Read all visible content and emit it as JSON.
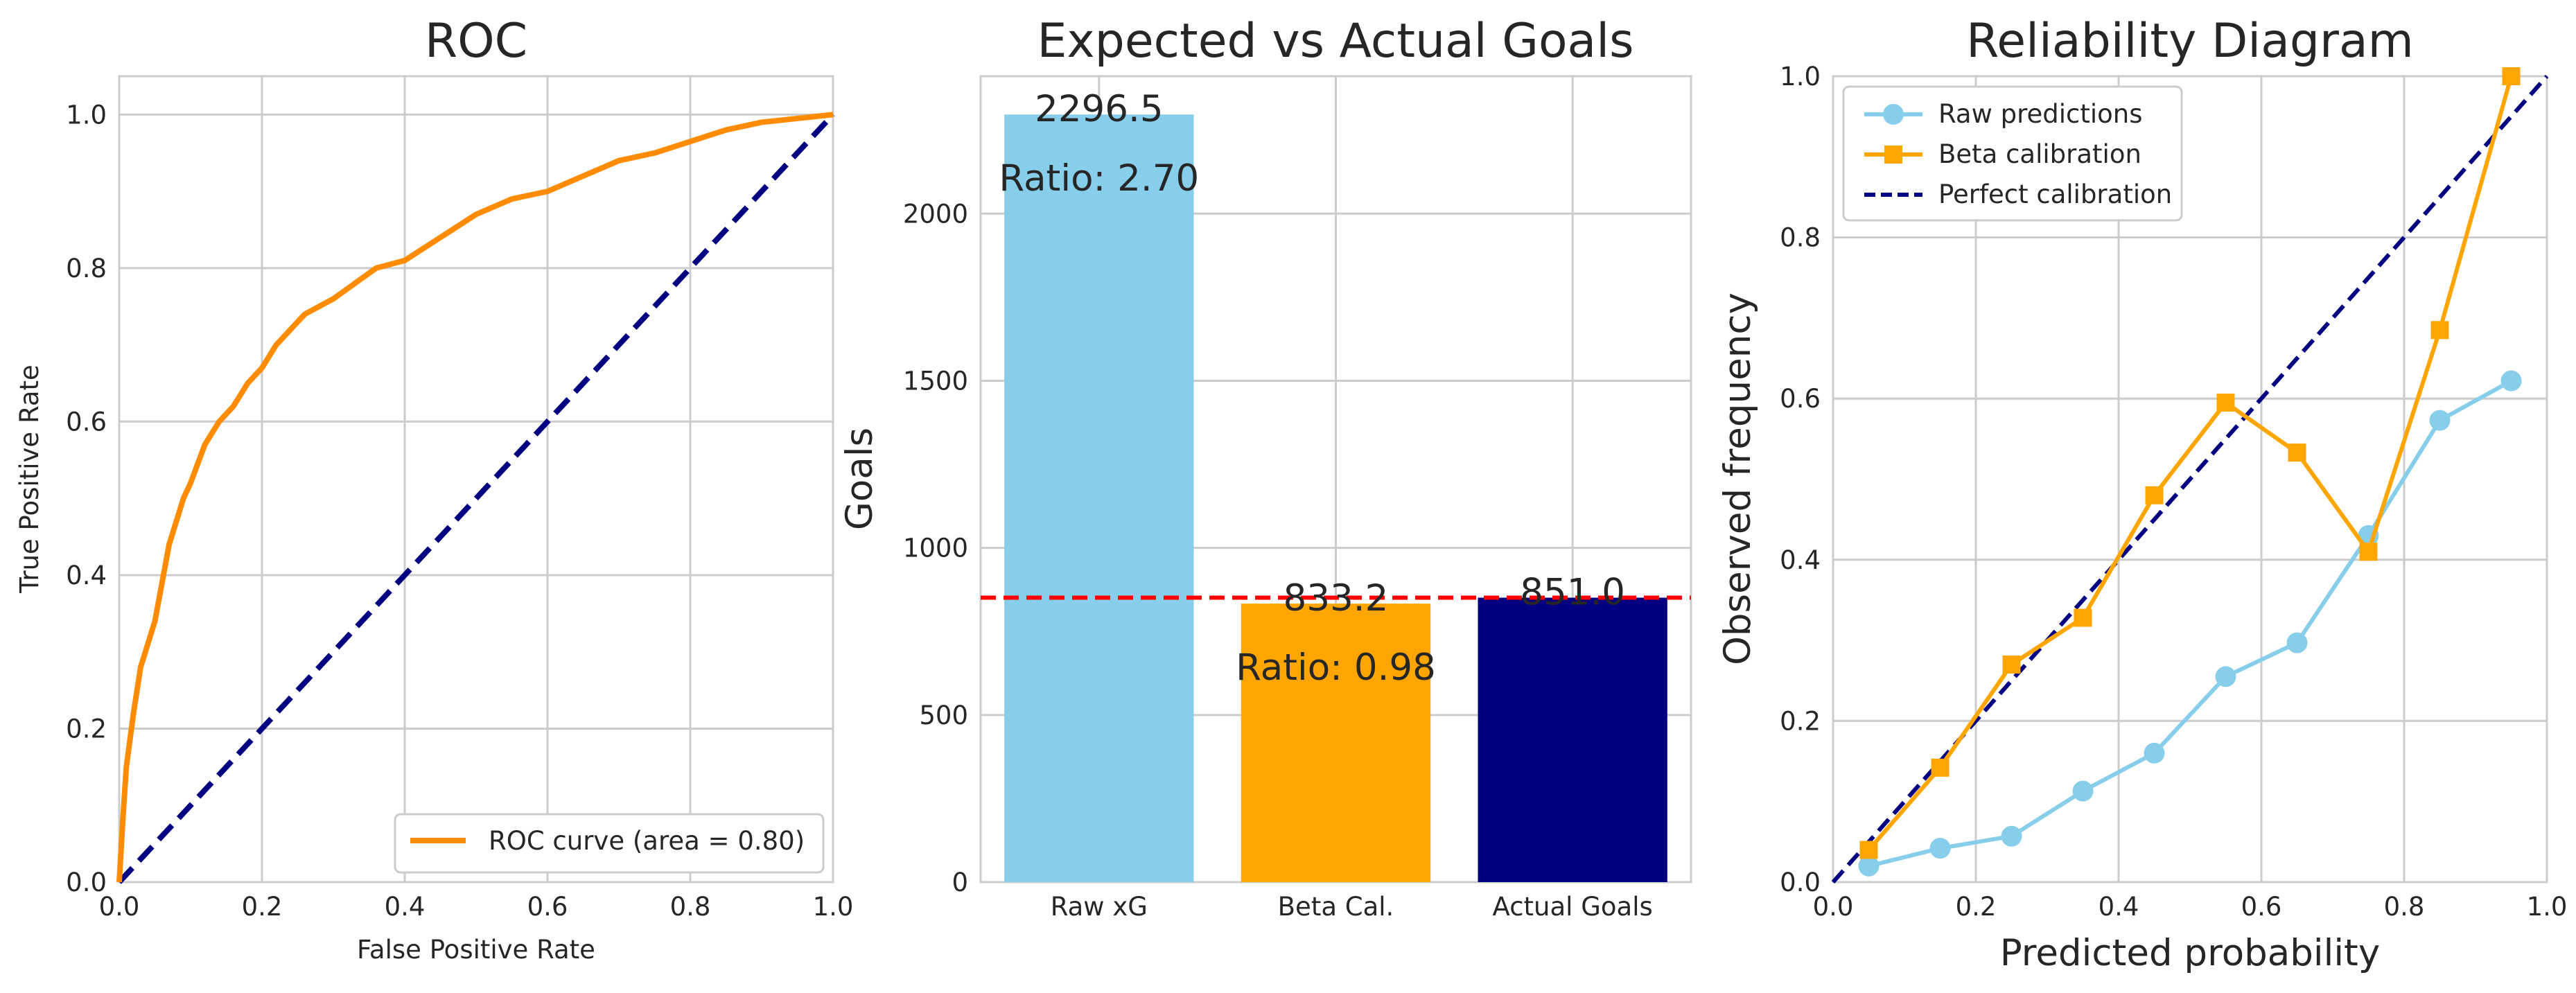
{
  "chart_data": [
    {
      "type": "line",
      "title": "ROC",
      "xlabel": "False Positive Rate",
      "ylabel": "True Positive Rate",
      "xlim": [
        0,
        1
      ],
      "ylim": [
        0,
        1.05
      ],
      "xticks": [
        "0.0",
        "0.2",
        "0.4",
        "0.6",
        "0.8",
        "1.0"
      ],
      "yticks": [
        "0.0",
        "0.2",
        "0.4",
        "0.6",
        "0.8",
        "1.0"
      ],
      "grid": true,
      "legend_position": "lower-right",
      "series": [
        {
          "name": "ROC curve (area = 0.80)",
          "color": "#ff8c00",
          "x": [
            0.0,
            0.005,
            0.01,
            0.02,
            0.03,
            0.04,
            0.05,
            0.06,
            0.07,
            0.08,
            0.09,
            0.1,
            0.12,
            0.14,
            0.16,
            0.18,
            0.2,
            0.22,
            0.24,
            0.26,
            0.28,
            0.3,
            0.33,
            0.36,
            0.4,
            0.45,
            0.5,
            0.55,
            0.6,
            0.65,
            0.7,
            0.75,
            0.8,
            0.85,
            0.9,
            0.95,
            1.0
          ],
          "y": [
            0.0,
            0.08,
            0.15,
            0.22,
            0.28,
            0.31,
            0.34,
            0.39,
            0.44,
            0.47,
            0.5,
            0.52,
            0.57,
            0.6,
            0.62,
            0.65,
            0.67,
            0.7,
            0.72,
            0.74,
            0.75,
            0.76,
            0.78,
            0.8,
            0.81,
            0.84,
            0.87,
            0.89,
            0.9,
            0.92,
            0.94,
            0.95,
            0.965,
            0.98,
            0.99,
            0.995,
            1.0
          ]
        },
        {
          "name": "",
          "color": "#000080",
          "style": "dashed",
          "x": [
            0,
            1
          ],
          "y": [
            0,
            1
          ]
        }
      ]
    },
    {
      "type": "bar",
      "title": "Expected vs Actual Goals",
      "xlabel": "",
      "ylabel": "Goals",
      "categories": [
        "Raw xG",
        "Beta Cal.",
        "Actual Goals"
      ],
      "values": [
        2296.5,
        833.2,
        851.0
      ],
      "value_labels": [
        "2296.5",
        "833.2",
        "851.0"
      ],
      "ratio_labels": [
        "Ratio: 2.70",
        "Ratio: 0.98"
      ],
      "colors": [
        "#87ceeb",
        "#ffa500",
        "#000080"
      ],
      "reference_line": {
        "value": 851.0,
        "color": "#ff0000",
        "style": "dashed"
      },
      "ylim": [
        0,
        2411
      ],
      "yticks": [
        "0",
        "500",
        "1000",
        "1500",
        "2000"
      ],
      "grid": true
    },
    {
      "type": "line",
      "title": "Reliability Diagram",
      "xlabel": "Predicted probability",
      "ylabel": "Observed frequency",
      "xlim": [
        0,
        1
      ],
      "ylim": [
        0,
        1
      ],
      "xticks": [
        "0.0",
        "0.2",
        "0.4",
        "0.6",
        "0.8",
        "1.0"
      ],
      "yticks": [
        "0.0",
        "0.2",
        "0.4",
        "0.6",
        "0.8",
        "1.0"
      ],
      "grid": true,
      "legend_position": "upper-left",
      "series": [
        {
          "name": "Raw predictions",
          "color": "#87ceeb",
          "marker": "circle",
          "x": [
            0.05,
            0.15,
            0.25,
            0.35,
            0.45,
            0.55,
            0.65,
            0.75,
            0.85,
            0.95
          ],
          "y": [
            0.02,
            0.042,
            0.057,
            0.113,
            0.16,
            0.255,
            0.297,
            0.43,
            0.573,
            0.622
          ]
        },
        {
          "name": "Beta calibration",
          "color": "#ffa500",
          "marker": "square",
          "x": [
            0.05,
            0.15,
            0.25,
            0.35,
            0.45,
            0.55,
            0.65,
            0.75,
            0.85,
            0.95
          ],
          "y": [
            0.04,
            0.142,
            0.27,
            0.328,
            0.48,
            0.595,
            0.533,
            0.41,
            0.685,
            1.0
          ]
        },
        {
          "name": "Perfect calibration",
          "color": "#000080",
          "style": "dashed",
          "x": [
            0,
            1
          ],
          "y": [
            0,
            1
          ]
        }
      ]
    }
  ]
}
